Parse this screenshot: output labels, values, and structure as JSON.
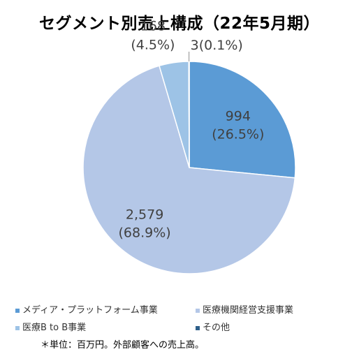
{
  "chart_data": {
    "type": "pie",
    "title": "セグメント別売上構成（22年5月期）",
    "categories": [
      "メディア・プラットフォーム事業",
      "医療機関経営支援事業",
      "医療B to B事業",
      "その他"
    ],
    "values": [
      994,
      2579,
      168,
      3
    ],
    "value_labels": [
      "994",
      "2,579",
      "168",
      "3"
    ],
    "percent_labels": [
      "(26.5%)",
      "(68.9%)",
      "(4.5%)",
      "(0.1%)"
    ],
    "colors": [
      "#5B9BD5",
      "#B4C7E7",
      "#9DC3E6",
      "#2E5F8A"
    ],
    "legend_position": "bottom",
    "footnote": "＊単位：百万円。外部顧客への売上高。"
  }
}
